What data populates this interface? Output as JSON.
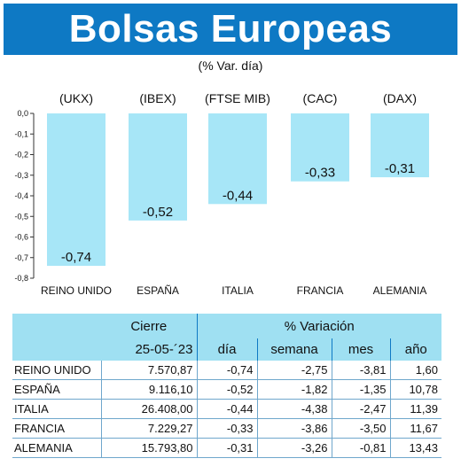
{
  "title": "Bolsas Europeas",
  "subtitle": "(% Var. día)",
  "colors": {
    "header": "#0e79c4",
    "bar": "#a7e6f7",
    "table_header": "#9fe0f2"
  },
  "chart_data": {
    "type": "bar",
    "title": "Bolsas Europeas",
    "subtitle": "(% Var. día)",
    "categories": [
      "REINO UNIDO",
      "ESPAÑA",
      "ITALIA",
      "FRANCIA",
      "ALEMANIA"
    ],
    "group_labels": [
      "(UKX)",
      "(IBEX)",
      "(FTSE MIB)",
      "(CAC)",
      "(DAX)"
    ],
    "values": [
      -0.74,
      -0.52,
      -0.44,
      -0.33,
      -0.31
    ],
    "value_labels": [
      "-0,74",
      "-0,52",
      "-0,44",
      "-0,33",
      "-0,31"
    ],
    "yticks": [
      "0,0",
      "-0,1",
      "-0,2",
      "-0,3",
      "-0,4",
      "-0,5",
      "-0,6",
      "-0,7",
      "-0,8"
    ],
    "ylim": [
      -0.8,
      0
    ],
    "grid": false
  },
  "table": {
    "header_cierre": "Cierre",
    "header_variacion": "% Variación",
    "date": "25-05-´23",
    "columns": [
      "día",
      "semana",
      "mes",
      "año"
    ],
    "rows": [
      {
        "name": "REINO UNIDO",
        "cierre": "7.570,87",
        "dia": "-0,74",
        "semana": "-2,75",
        "mes": "-3,81",
        "ano": "1,60"
      },
      {
        "name": "ESPAÑA",
        "cierre": "9.116,10",
        "dia": "-0,52",
        "semana": "-1,82",
        "mes": "-1,35",
        "ano": "10,78"
      },
      {
        "name": "ITALIA",
        "cierre": "26.408,00",
        "dia": "-0,44",
        "semana": "-4,38",
        "mes": "-2,47",
        "ano": "11,39"
      },
      {
        "name": "FRANCIA",
        "cierre": "7.229,27",
        "dia": "-0,33",
        "semana": "-3,86",
        "mes": "-3,50",
        "ano": "11,67"
      },
      {
        "name": "ALEMANIA",
        "cierre": "15.793,80",
        "dia": "-0,31",
        "semana": "-3,26",
        "mes": "-0,81",
        "ano": "13,43"
      }
    ]
  }
}
